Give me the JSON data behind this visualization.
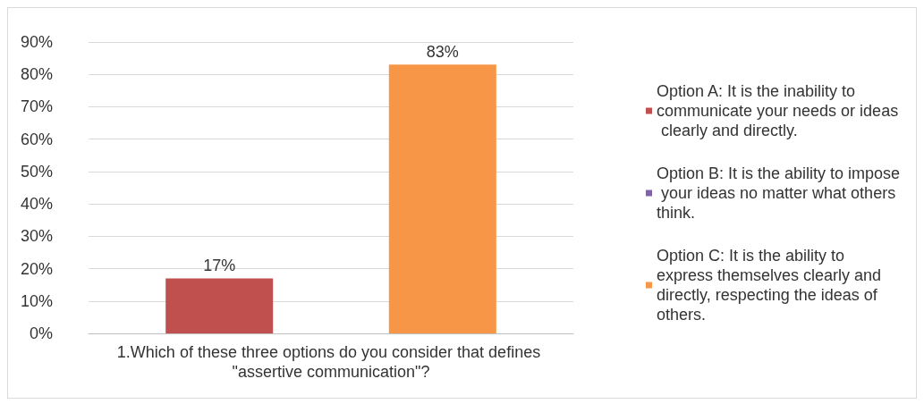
{
  "chart_data": {
    "type": "bar",
    "categories": [
      "1.Which of these three options do you consider that defines \"assertive communication\"?"
    ],
    "series": [
      {
        "name": "Option A: It is the inability to communicate your needs or ideas clearly and directly.",
        "color": "#c0504d",
        "values": [
          17
        ],
        "value_labels": [
          "17%"
        ]
      },
      {
        "name": "Option B: It is the ability to impose your ideas no matter what others think.",
        "color": "#8064a2",
        "values": [
          0
        ],
        "value_labels": [
          null
        ]
      },
      {
        "name": "Option C: It is the ability to express themselves clearly and directly, respecting the ideas of others.",
        "color": "#f79646",
        "values": [
          83
        ],
        "value_labels": [
          "83%"
        ]
      }
    ],
    "ylim": [
      0,
      90
    ],
    "yticks": [
      {
        "value": 0,
        "label": "0%"
      },
      {
        "value": 10,
        "label": "10%"
      },
      {
        "value": 20,
        "label": "20%"
      },
      {
        "value": 30,
        "label": "30%"
      },
      {
        "value": 40,
        "label": "40%"
      },
      {
        "value": 50,
        "label": "50%"
      },
      {
        "value": 60,
        "label": "60%"
      },
      {
        "value": 70,
        "label": "70%"
      },
      {
        "value": 80,
        "label": "80%"
      },
      {
        "value": 90,
        "label": "90%"
      }
    ],
    "grid": "y",
    "legend": "right"
  }
}
